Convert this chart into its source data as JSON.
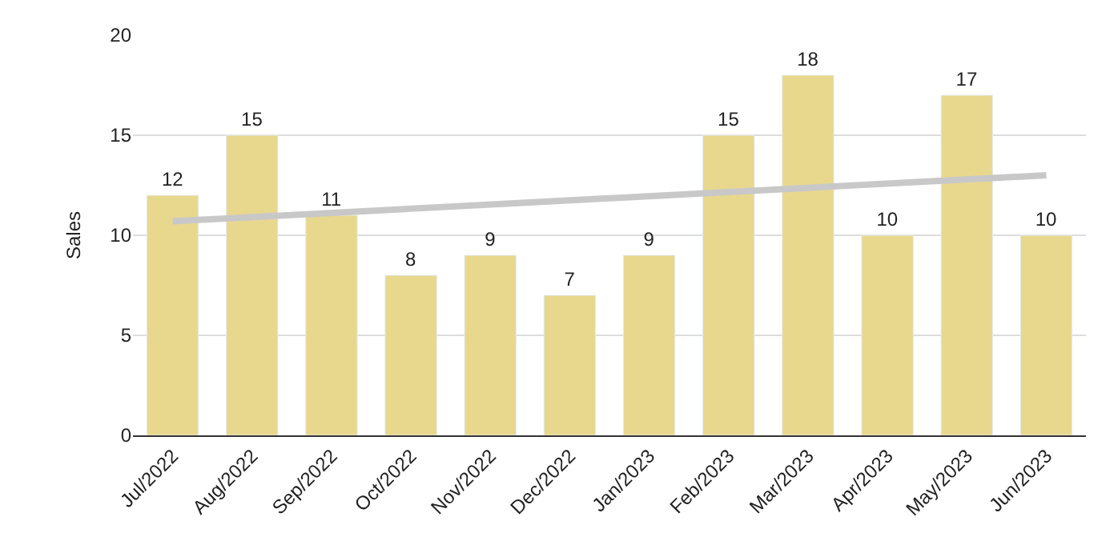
{
  "chart_data": {
    "type": "bar",
    "ylabel": "Sales",
    "categories": [
      "Jul/2022",
      "Aug/2022",
      "Sep/2022",
      "Oct/2022",
      "Nov/2022",
      "Dec/2022",
      "Jan/2023",
      "Feb/2023",
      "Mar/2023",
      "Apr/2023",
      "May/2023",
      "Jun/2023"
    ],
    "series": [
      {
        "color": "#e8d88e",
        "values": [
          12,
          15,
          11,
          8,
          9,
          7,
          9,
          15,
          18,
          10,
          17,
          10
        ],
        "value_labels": [
          "12",
          "15",
          "11",
          "8",
          "9",
          "7",
          "9",
          "15",
          "18",
          "10",
          "17",
          "10"
        ]
      },
      {
        "type": "line",
        "color": "#c8c8c8",
        "x": [
          "Jul/2022",
          "Jun/2023"
        ],
        "values": [
          10.7,
          13.0
        ]
      }
    ],
    "ylim": [
      0,
      20
    ],
    "yticks": [
      0,
      5,
      10,
      15,
      20
    ],
    "grid": "y",
    "legend": false
  }
}
